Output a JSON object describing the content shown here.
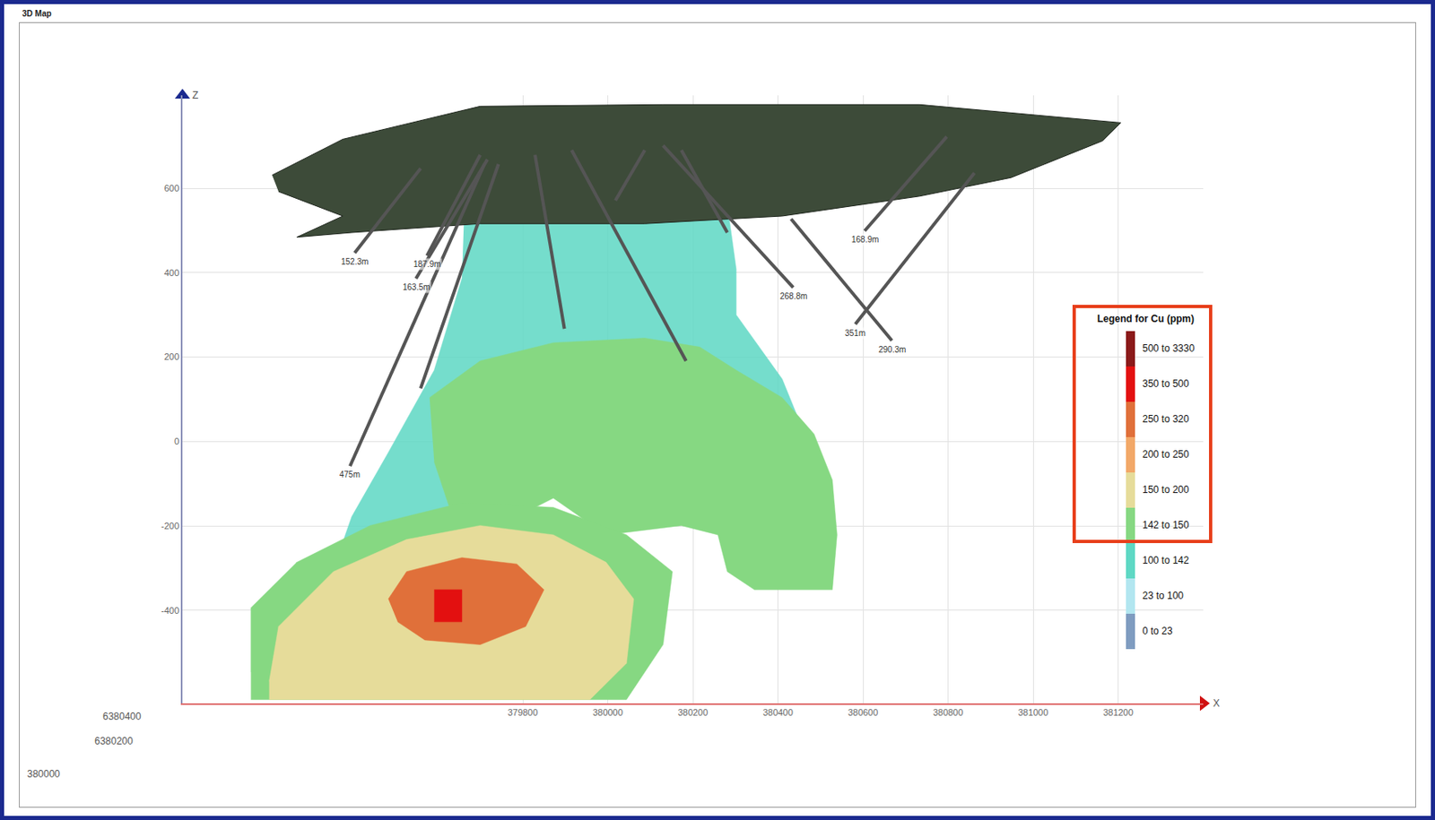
{
  "header": "3D Map",
  "chart_data": {
    "type": "3d_section",
    "x_label": "X",
    "z_label": "Z",
    "xlim": [
      379000,
      381400
    ],
    "ylim": [
      -620,
      820
    ],
    "xticks": [
      379800,
      380000,
      380200,
      380400,
      380600,
      380800,
      381000,
      381200
    ],
    "yticks": [
      -400,
      -200,
      0,
      200,
      400,
      600
    ],
    "grid": true,
    "y_axis_labels": [
      "6380400",
      "6380200",
      "380000"
    ],
    "surface": {
      "color": "#3d4b39",
      "x": [
        379211,
        379377,
        379700,
        380130,
        380733,
        381206,
        381163,
        380948,
        380733,
        380410,
        380087,
        379700,
        379398,
        379269,
        379377,
        379226
      ],
      "z": [
        631,
        716,
        794,
        798,
        798,
        755,
        712,
        625,
        581,
        534,
        516,
        516,
        495,
        484,
        534,
        592
      ]
    },
    "zones": [
      {
        "class": "100 to 142",
        "x": [
          379667,
          379915,
          380130,
          380281,
          380302,
          380302,
          380410,
          380485,
          380216,
          379872,
          379657,
          379570,
          379484,
          379334,
          379398,
          379484,
          379592,
          379657
        ],
        "z": [
          668,
          701,
          690,
          560,
          408,
          300,
          148,
          -37,
          -4,
          -4,
          -91,
          -264,
          -351,
          -362,
          -178,
          -26,
          169,
          386
        ]
      },
      {
        "class": "142 to 150",
        "x": [
          379581,
          379700,
          379872,
          380087,
          380216,
          380302,
          380410,
          380485,
          380528,
          380539,
          380528,
          380345,
          380281,
          380259,
          380173,
          380087,
          379996,
          379872,
          379786,
          379700,
          379635,
          379592
        ],
        "z": [
          104,
          191,
          234,
          245,
          224,
          169,
          104,
          18,
          -91,
          -221,
          -351,
          -351,
          -308,
          -221,
          -199,
          -210,
          -221,
          -134,
          -178,
          -178,
          -178,
          -48
        ]
      },
      {
        "class": "142 to 150",
        "x": [
          379161,
          379161,
          379269,
          379441,
          379657,
          379872,
          380044,
          380152,
          380130,
          380044,
          379161
        ],
        "z": [
          -546,
          -394,
          -286,
          -199,
          -145,
          -156,
          -221,
          -308,
          -481,
          -611,
          -611
        ]
      },
      {
        "class": "150 to 200",
        "x": [
          379204,
          379226,
          379355,
          379527,
          379700,
          379872,
          379996,
          380061,
          380044,
          379958,
          379204
        ],
        "z": [
          -568,
          -438,
          -308,
          -232,
          -199,
          -221,
          -286,
          -373,
          -525,
          -611,
          -611
        ]
      },
      {
        "class": "250 to 320",
        "x": [
          379484,
          379527,
          379657,
          379786,
          379850,
          379807,
          379700,
          379570,
          379506
        ],
        "z": [
          -373,
          -308,
          -275,
          -290,
          -351,
          -438,
          -481,
          -470,
          -427
        ]
      },
      {
        "class": "350 to 500",
        "x": [
          379592,
          379657,
          379657,
          379592
        ],
        "z": [
          -351,
          -351,
          -427,
          -427
        ]
      }
    ],
    "drill_holes": [
      {
        "label": "152.3m",
        "x": [
          379560,
          379405
        ],
        "z": [
          647,
          447
        ]
      },
      {
        "label": "187.9m",
        "x": [
          379700,
          379575
        ],
        "z": [
          679,
          440
        ]
      },
      {
        "label": "163.5m",
        "x": [
          379717,
          379549
        ],
        "z": [
          668,
          386
        ]
      },
      {
        "label": "475m",
        "x": [
          379710,
          379394
        ],
        "z": [
          657,
          -58
        ]
      },
      {
        "label": "268.8m",
        "x": [
          380130,
          380436
        ],
        "z": [
          701,
          365
        ]
      },
      {
        "label": "168.9m",
        "x": [
          380797,
          380604
        ],
        "z": [
          722,
          499
        ]
      },
      {
        "label": "351m",
        "x": [
          380862,
          380582
        ],
        "z": [
          636,
          278
        ]
      },
      {
        "label": "290.3m",
        "x": [
          380431,
          380668
        ],
        "z": [
          527,
          239
        ]
      },
      {
        "label": null,
        "x": [
          379743,
          379560
        ],
        "z": [
          657,
          126
        ]
      },
      {
        "label": null,
        "x": [
          379829,
          379898
        ],
        "z": [
          679,
          267
        ]
      },
      {
        "label": null,
        "x": [
          379915,
          380184
        ],
        "z": [
          690,
          191
        ]
      },
      {
        "label": null,
        "x": [
          380087,
          380018
        ],
        "z": [
          690,
          571
        ]
      },
      {
        "label": null,
        "x": [
          380173,
          380281
        ],
        "z": [
          690,
          495
        ]
      }
    ],
    "cu_legend": {
      "title": "Legend for Cu (ppm)",
      "classes": [
        {
          "label": "500 to 3330",
          "color": "#8b1a1a"
        },
        {
          "label": "350 to 500",
          "color": "#e31010"
        },
        {
          "label": "250 to 320",
          "color": "#e0703a"
        },
        {
          "label": "200 to 250",
          "color": "#f2a868"
        },
        {
          "label": "150 to 200",
          "color": "#e6dc9a"
        },
        {
          "label": "142 to 150",
          "color": "#86d882"
        },
        {
          "label": "100 to 142",
          "color": "#5ed8c4"
        },
        {
          "label": "23 to 100",
          "color": "#b2e6f0"
        },
        {
          "label": "0 to 23",
          "color": "#7f9cc0"
        }
      ]
    }
  }
}
